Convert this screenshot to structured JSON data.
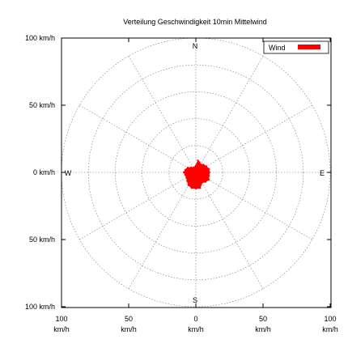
{
  "chart_data": {
    "type": "polar-area",
    "title": "Verteilung Geschwindigkeit  10min Mittelwind",
    "compass": {
      "north": "N",
      "south": "S",
      "east": "E",
      "west": "W"
    },
    "radial_max_kmh": 100,
    "ring_step_kmh": 20,
    "grid": true,
    "legend": {
      "position": "top-right",
      "label": "Wind",
      "color": "#ff0000"
    },
    "y_ticks": [
      {
        "value": 100,
        "label": "100 km/h"
      },
      {
        "value": 50,
        "label": "50 km/h"
      },
      {
        "value": 0,
        "label": "0 km/h"
      },
      {
        "value": -50,
        "label": "50 km/h"
      },
      {
        "value": -100,
        "label": "100 km/h"
      }
    ],
    "x_ticks": [
      {
        "value": -100,
        "label": "100",
        "unit": "km/h"
      },
      {
        "value": -50,
        "label": "50",
        "unit": "km/h"
      },
      {
        "value": 0,
        "label": "0",
        "unit": "km/h"
      },
      {
        "value": 50,
        "label": "50",
        "unit": "km/h"
      },
      {
        "value": 100,
        "label": "100",
        "unit": "km/h"
      }
    ],
    "series": [
      {
        "name": "Wind",
        "color": "#ff0000",
        "points": [
          {
            "direction_deg": 0,
            "speed_kmh": 5
          },
          {
            "direction_deg": 10,
            "speed_kmh": 9
          },
          {
            "direction_deg": 20,
            "speed_kmh": 8
          },
          {
            "direction_deg": 30,
            "speed_kmh": 7
          },
          {
            "direction_deg": 45,
            "speed_kmh": 8
          },
          {
            "direction_deg": 60,
            "speed_kmh": 9
          },
          {
            "direction_deg": 75,
            "speed_kmh": 10
          },
          {
            "direction_deg": 90,
            "speed_kmh": 10
          },
          {
            "direction_deg": 105,
            "speed_kmh": 10
          },
          {
            "direction_deg": 120,
            "speed_kmh": 11
          },
          {
            "direction_deg": 135,
            "speed_kmh": 10
          },
          {
            "direction_deg": 150,
            "speed_kmh": 9
          },
          {
            "direction_deg": 165,
            "speed_kmh": 12
          },
          {
            "direction_deg": 180,
            "speed_kmh": 12
          },
          {
            "direction_deg": 195,
            "speed_kmh": 12
          },
          {
            "direction_deg": 210,
            "speed_kmh": 11
          },
          {
            "direction_deg": 225,
            "speed_kmh": 9
          },
          {
            "direction_deg": 240,
            "speed_kmh": 8
          },
          {
            "direction_deg": 255,
            "speed_kmh": 8
          },
          {
            "direction_deg": 270,
            "speed_kmh": 9
          },
          {
            "direction_deg": 285,
            "speed_kmh": 8
          },
          {
            "direction_deg": 300,
            "speed_kmh": 7
          },
          {
            "direction_deg": 315,
            "speed_kmh": 5
          },
          {
            "direction_deg": 330,
            "speed_kmh": 4
          },
          {
            "direction_deg": 345,
            "speed_kmh": 4
          }
        ]
      }
    ]
  }
}
